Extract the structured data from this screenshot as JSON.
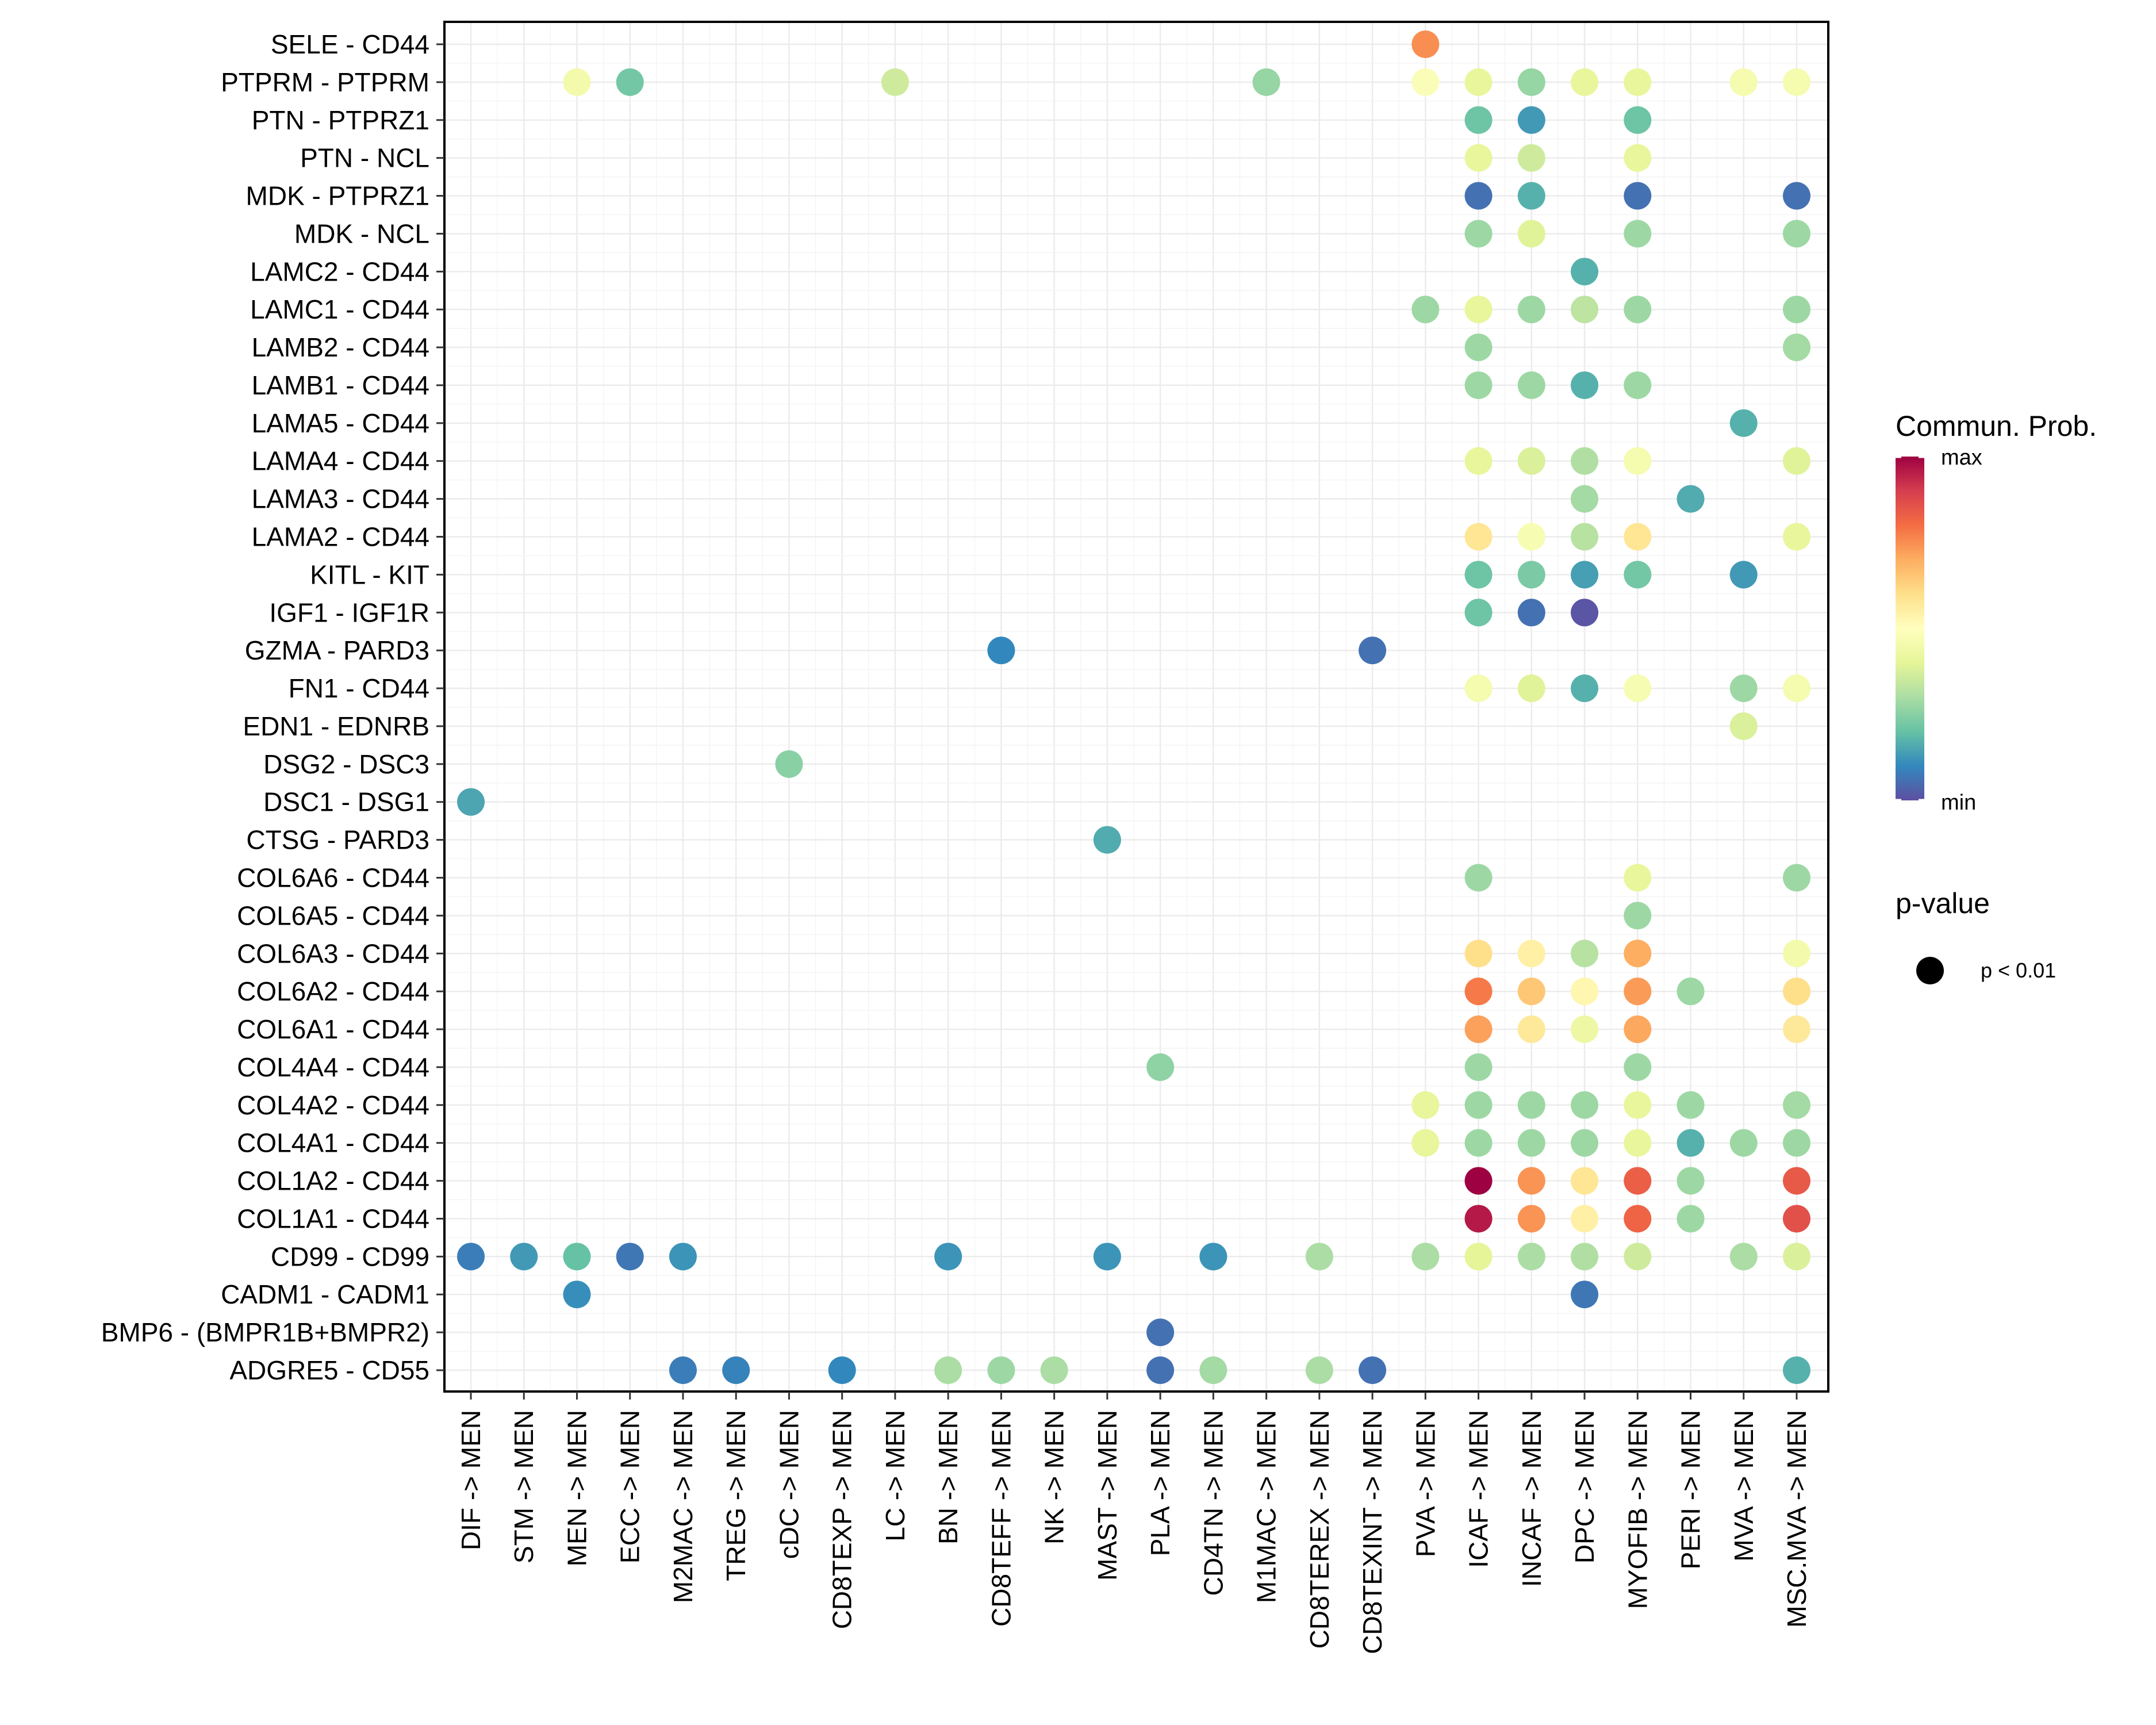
{
  "chart_data": {
    "type": "scatter",
    "subtype": "dot-plot",
    "title": "",
    "xlabel": "",
    "ylabel": "",
    "grid": true,
    "x_categories": [
      "DIF -> MEN",
      "STM -> MEN",
      "MEN -> MEN",
      "ECC -> MEN",
      "M2MAC -> MEN",
      "TREG -> MEN",
      "cDC -> MEN",
      "CD8TEXP -> MEN",
      "LC -> MEN",
      "BN -> MEN",
      "CD8TEFF -> MEN",
      "NK -> MEN",
      "MAST -> MEN",
      "PLA -> MEN",
      "CD4TN -> MEN",
      "M1MAC -> MEN",
      "CD8TEREX -> MEN",
      "CD8TEXINT -> MEN",
      "PVA -> MEN",
      "ICAF -> MEN",
      "INCAF -> MEN",
      "DPC -> MEN",
      "MYOFIB -> MEN",
      "PERI -> MEN",
      "MVA -> MEN",
      "MSC.MVA -> MEN"
    ],
    "y_categories": [
      "SELE - CD44",
      "PTPRM - PTPRM",
      "PTN - PTPRZ1",
      "PTN - NCL",
      "MDK - PTPRZ1",
      "MDK - NCL",
      "LAMC2 - CD44",
      "LAMC1 - CD44",
      "LAMB2 - CD44",
      "LAMB1 - CD44",
      "LAMA5 - CD44",
      "LAMA4 - CD44",
      "LAMA3 - CD44",
      "LAMA2 - CD44",
      "KITL - KIT",
      "IGF1 - IGF1R",
      "GZMA - PARD3",
      "FN1 - CD44",
      "EDN1 - EDNRB",
      "DSG2 - DSC3",
      "DSC1 - DSG1",
      "CTSG - PARD3",
      "COL6A6 - CD44",
      "COL6A5 - CD44",
      "COL6A3 - CD44",
      "COL6A2 - CD44",
      "COL6A1 - CD44",
      "COL4A4 - CD44",
      "COL4A2 - CD44",
      "COL4A1 - CD44",
      "COL1A2 - CD44",
      "COL1A1 - CD44",
      "CD99 - CD99",
      "CADM1 - CADM1",
      "BMP6 - (BMPR1B+BMPR2)",
      "ADGRE5 - CD55"
    ],
    "value_note": "prob is relative communication probability on colorbar scale (0=min, 1=max), estimated from color",
    "points": [
      {
        "y": "SELE - CD44",
        "x": "PVA -> MEN",
        "prob": 0.75
      },
      {
        "y": "PTPRM - PTPRM",
        "x": "MEN -> MEN",
        "prob": 0.45
      },
      {
        "y": "PTPRM - PTPRM",
        "x": "ECC -> MEN",
        "prob": 0.22
      },
      {
        "y": "PTPRM - PTPRM",
        "x": "LC -> MEN",
        "prob": 0.36
      },
      {
        "y": "PTPRM - PTPRM",
        "x": "M1MAC -> MEN",
        "prob": 0.27
      },
      {
        "y": "PTPRM - PTPRM",
        "x": "PVA -> MEN",
        "prob": 0.48
      },
      {
        "y": "PTPRM - PTPRM",
        "x": "ICAF -> MEN",
        "prob": 0.41
      },
      {
        "y": "PTPRM - PTPRM",
        "x": "INCAF -> MEN",
        "prob": 0.27
      },
      {
        "y": "PTPRM - PTPRM",
        "x": "DPC -> MEN",
        "prob": 0.41
      },
      {
        "y": "PTPRM - PTPRM",
        "x": "MYOFIB -> MEN",
        "prob": 0.41
      },
      {
        "y": "PTPRM - PTPRM",
        "x": "MVA -> MEN",
        "prob": 0.46
      },
      {
        "y": "PTPRM - PTPRM",
        "x": "MSC.MVA -> MEN",
        "prob": 0.46
      },
      {
        "y": "PTN - PTPRZ1",
        "x": "ICAF -> MEN",
        "prob": 0.21
      },
      {
        "y": "PTN - PTPRZ1",
        "x": "INCAF -> MEN",
        "prob": 0.13
      },
      {
        "y": "PTN - PTPRZ1",
        "x": "MYOFIB -> MEN",
        "prob": 0.21
      },
      {
        "y": "PTN - NCL",
        "x": "ICAF -> MEN",
        "prob": 0.41
      },
      {
        "y": "PTN - NCL",
        "x": "INCAF -> MEN",
        "prob": 0.36
      },
      {
        "y": "PTN - NCL",
        "x": "MYOFIB -> MEN",
        "prob": 0.41
      },
      {
        "y": "MDK - PTPRZ1",
        "x": "ICAF -> MEN",
        "prob": 0.06
      },
      {
        "y": "MDK - PTPRZ1",
        "x": "INCAF -> MEN",
        "prob": 0.17
      },
      {
        "y": "MDK - PTPRZ1",
        "x": "MYOFIB -> MEN",
        "prob": 0.06
      },
      {
        "y": "MDK - PTPRZ1",
        "x": "MSC.MVA -> MEN",
        "prob": 0.06
      },
      {
        "y": "MDK - NCL",
        "x": "ICAF -> MEN",
        "prob": 0.28
      },
      {
        "y": "MDK - NCL",
        "x": "INCAF -> MEN",
        "prob": 0.39
      },
      {
        "y": "MDK - NCL",
        "x": "MYOFIB -> MEN",
        "prob": 0.28
      },
      {
        "y": "MDK - NCL",
        "x": "MSC.MVA -> MEN",
        "prob": 0.28
      },
      {
        "y": "LAMC2 - CD44",
        "x": "DPC -> MEN",
        "prob": 0.17
      },
      {
        "y": "LAMC1 - CD44",
        "x": "PVA -> MEN",
        "prob": 0.28
      },
      {
        "y": "LAMC1 - CD44",
        "x": "ICAF -> MEN",
        "prob": 0.41
      },
      {
        "y": "LAMC1 - CD44",
        "x": "INCAF -> MEN",
        "prob": 0.28
      },
      {
        "y": "LAMC1 - CD44",
        "x": "DPC -> MEN",
        "prob": 0.33
      },
      {
        "y": "LAMC1 - CD44",
        "x": "MYOFIB -> MEN",
        "prob": 0.28
      },
      {
        "y": "LAMC1 - CD44",
        "x": "MSC.MVA -> MEN",
        "prob": 0.28
      },
      {
        "y": "LAMB2 - CD44",
        "x": "ICAF -> MEN",
        "prob": 0.28
      },
      {
        "y": "LAMB2 - CD44",
        "x": "MSC.MVA -> MEN",
        "prob": 0.29
      },
      {
        "y": "LAMB1 - CD44",
        "x": "ICAF -> MEN",
        "prob": 0.28
      },
      {
        "y": "LAMB1 - CD44",
        "x": "INCAF -> MEN",
        "prob": 0.28
      },
      {
        "y": "LAMB1 - CD44",
        "x": "DPC -> MEN",
        "prob": 0.17
      },
      {
        "y": "LAMB1 - CD44",
        "x": "MYOFIB -> MEN",
        "prob": 0.28
      },
      {
        "y": "LAMA5 - CD44",
        "x": "MVA -> MEN",
        "prob": 0.17
      },
      {
        "y": "LAMA4 - CD44",
        "x": "ICAF -> MEN",
        "prob": 0.41
      },
      {
        "y": "LAMA4 - CD44",
        "x": "INCAF -> MEN",
        "prob": 0.38
      },
      {
        "y": "LAMA4 - CD44",
        "x": "DPC -> MEN",
        "prob": 0.31
      },
      {
        "y": "LAMA4 - CD44",
        "x": "MYOFIB -> MEN",
        "prob": 0.46
      },
      {
        "y": "LAMA4 - CD44",
        "x": "MSC.MVA -> MEN",
        "prob": 0.39
      },
      {
        "y": "LAMA3 - CD44",
        "x": "DPC -> MEN",
        "prob": 0.29
      },
      {
        "y": "LAMA3 - CD44",
        "x": "PERI -> MEN",
        "prob": 0.16
      },
      {
        "y": "LAMA2 - CD44",
        "x": "ICAF -> MEN",
        "prob": 0.58
      },
      {
        "y": "LAMA2 - CD44",
        "x": "INCAF -> MEN",
        "prob": 0.47
      },
      {
        "y": "LAMA2 - CD44",
        "x": "DPC -> MEN",
        "prob": 0.32
      },
      {
        "y": "LAMA2 - CD44",
        "x": "MYOFIB -> MEN",
        "prob": 0.58
      },
      {
        "y": "LAMA2 - CD44",
        "x": "MSC.MVA -> MEN",
        "prob": 0.41
      },
      {
        "y": "KITL - KIT",
        "x": "ICAF -> MEN",
        "prob": 0.21
      },
      {
        "y": "KITL - KIT",
        "x": "INCAF -> MEN",
        "prob": 0.23
      },
      {
        "y": "KITL - KIT",
        "x": "DPC -> MEN",
        "prob": 0.14
      },
      {
        "y": "KITL - KIT",
        "x": "MYOFIB -> MEN",
        "prob": 0.22
      },
      {
        "y": "KITL - KIT",
        "x": "MVA -> MEN",
        "prob": 0.13
      },
      {
        "y": "IGF1 - IGF1R",
        "x": "ICAF -> MEN",
        "prob": 0.21
      },
      {
        "y": "IGF1 - IGF1R",
        "x": "INCAF -> MEN",
        "prob": 0.06
      },
      {
        "y": "IGF1 - IGF1R",
        "x": "DPC -> MEN",
        "prob": 0.01
      },
      {
        "y": "GZMA - PARD3",
        "x": "CD8TEFF -> MEN",
        "prob": 0.1
      },
      {
        "y": "GZMA - PARD3",
        "x": "CD8TEXINT -> MEN",
        "prob": 0.06
      },
      {
        "y": "FN1 - CD44",
        "x": "ICAF -> MEN",
        "prob": 0.46
      },
      {
        "y": "FN1 - CD44",
        "x": "INCAF -> MEN",
        "prob": 0.39
      },
      {
        "y": "FN1 - CD44",
        "x": "DPC -> MEN",
        "prob": 0.17
      },
      {
        "y": "FN1 - CD44",
        "x": "MYOFIB -> MEN",
        "prob": 0.47
      },
      {
        "y": "FN1 - CD44",
        "x": "MVA -> MEN",
        "prob": 0.28
      },
      {
        "y": "FN1 - CD44",
        "x": "MSC.MVA -> MEN",
        "prob": 0.46
      },
      {
        "y": "EDN1 - EDNRB",
        "x": "MVA -> MEN",
        "prob": 0.38
      },
      {
        "y": "DSG2 - DSC3",
        "x": "cDC -> MEN",
        "prob": 0.25
      },
      {
        "y": "DSC1 - DSG1",
        "x": "DIF -> MEN",
        "prob": 0.15
      },
      {
        "y": "CTSG - PARD3",
        "x": "MAST -> MEN",
        "prob": 0.16
      },
      {
        "y": "COL6A6 - CD44",
        "x": "ICAF -> MEN",
        "prob": 0.28
      },
      {
        "y": "COL6A6 - CD44",
        "x": "MYOFIB -> MEN",
        "prob": 0.41
      },
      {
        "y": "COL6A6 - CD44",
        "x": "MSC.MVA -> MEN",
        "prob": 0.28
      },
      {
        "y": "COL6A5 - CD44",
        "x": "MYOFIB -> MEN",
        "prob": 0.28
      },
      {
        "y": "COL6A3 - CD44",
        "x": "ICAF -> MEN",
        "prob": 0.6
      },
      {
        "y": "COL6A3 - CD44",
        "x": "INCAF -> MEN",
        "prob": 0.55
      },
      {
        "y": "COL6A3 - CD44",
        "x": "DPC -> MEN",
        "prob": 0.32
      },
      {
        "y": "COL6A3 - CD44",
        "x": "MYOFIB -> MEN",
        "prob": 0.7
      },
      {
        "y": "COL6A3 - CD44",
        "x": "MSC.MVA -> MEN",
        "prob": 0.45
      },
      {
        "y": "COL6A2 - CD44",
        "x": "ICAF -> MEN",
        "prob": 0.78
      },
      {
        "y": "COL6A2 - CD44",
        "x": "INCAF -> MEN",
        "prob": 0.65
      },
      {
        "y": "COL6A2 - CD44",
        "x": "DPC -> MEN",
        "prob": 0.53
      },
      {
        "y": "COL6A2 - CD44",
        "x": "MYOFIB -> MEN",
        "prob": 0.73
      },
      {
        "y": "COL6A2 - CD44",
        "x": "PERI -> MEN",
        "prob": 0.28
      },
      {
        "y": "COL6A2 - CD44",
        "x": "MSC.MVA -> MEN",
        "prob": 0.6
      },
      {
        "y": "COL6A1 - CD44",
        "x": "ICAF -> MEN",
        "prob": 0.72
      },
      {
        "y": "COL6A1 - CD44",
        "x": "INCAF -> MEN",
        "prob": 0.57
      },
      {
        "y": "COL6A1 - CD44",
        "x": "DPC -> MEN",
        "prob": 0.43
      },
      {
        "y": "COL6A1 - CD44",
        "x": "MYOFIB -> MEN",
        "prob": 0.71
      },
      {
        "y": "COL6A1 - CD44",
        "x": "MSC.MVA -> MEN",
        "prob": 0.57
      },
      {
        "y": "COL4A4 - CD44",
        "x": "PLA -> MEN",
        "prob": 0.26
      },
      {
        "y": "COL4A4 - CD44",
        "x": "ICAF -> MEN",
        "prob": 0.28
      },
      {
        "y": "COL4A4 - CD44",
        "x": "MYOFIB -> MEN",
        "prob": 0.28
      },
      {
        "y": "COL4A2 - CD44",
        "x": "PVA -> MEN",
        "prob": 0.41
      },
      {
        "y": "COL4A2 - CD44",
        "x": "ICAF -> MEN",
        "prob": 0.28
      },
      {
        "y": "COL4A2 - CD44",
        "x": "INCAF -> MEN",
        "prob": 0.28
      },
      {
        "y": "COL4A2 - CD44",
        "x": "DPC -> MEN",
        "prob": 0.28
      },
      {
        "y": "COL4A2 - CD44",
        "x": "MYOFIB -> MEN",
        "prob": 0.41
      },
      {
        "y": "COL4A2 - CD44",
        "x": "PERI -> MEN",
        "prob": 0.28
      },
      {
        "y": "COL4A2 - CD44",
        "x": "MSC.MVA -> MEN",
        "prob": 0.29
      },
      {
        "y": "COL4A1 - CD44",
        "x": "PVA -> MEN",
        "prob": 0.41
      },
      {
        "y": "COL4A1 - CD44",
        "x": "ICAF -> MEN",
        "prob": 0.28
      },
      {
        "y": "COL4A1 - CD44",
        "x": "INCAF -> MEN",
        "prob": 0.28
      },
      {
        "y": "COL4A1 - CD44",
        "x": "DPC -> MEN",
        "prob": 0.28
      },
      {
        "y": "COL4A1 - CD44",
        "x": "MYOFIB -> MEN",
        "prob": 0.41
      },
      {
        "y": "COL4A1 - CD44",
        "x": "PERI -> MEN",
        "prob": 0.17
      },
      {
        "y": "COL4A1 - CD44",
        "x": "MVA -> MEN",
        "prob": 0.28
      },
      {
        "y": "COL4A1 - CD44",
        "x": "MSC.MVA -> MEN",
        "prob": 0.28
      },
      {
        "y": "COL1A2 - CD44",
        "x": "ICAF -> MEN",
        "prob": 1.0
      },
      {
        "y": "COL1A2 - CD44",
        "x": "INCAF -> MEN",
        "prob": 0.74
      },
      {
        "y": "COL1A2 - CD44",
        "x": "DPC -> MEN",
        "prob": 0.58
      },
      {
        "y": "COL1A2 - CD44",
        "x": "MYOFIB -> MEN",
        "prob": 0.83
      },
      {
        "y": "COL1A2 - CD44",
        "x": "PERI -> MEN",
        "prob": 0.28
      },
      {
        "y": "COL1A2 - CD44",
        "x": "MSC.MVA -> MEN",
        "prob": 0.84
      },
      {
        "y": "COL1A1 - CD44",
        "x": "ICAF -> MEN",
        "prob": 0.96
      },
      {
        "y": "COL1A1 - CD44",
        "x": "INCAF -> MEN",
        "prob": 0.74
      },
      {
        "y": "COL1A1 - CD44",
        "x": "DPC -> MEN",
        "prob": 0.55
      },
      {
        "y": "COL1A1 - CD44",
        "x": "MYOFIB -> MEN",
        "prob": 0.82
      },
      {
        "y": "COL1A1 - CD44",
        "x": "PERI -> MEN",
        "prob": 0.28
      },
      {
        "y": "COL1A1 - CD44",
        "x": "MSC.MVA -> MEN",
        "prob": 0.86
      },
      {
        "y": "CD99 - CD99",
        "x": "DIF -> MEN",
        "prob": 0.08
      },
      {
        "y": "CD99 - CD99",
        "x": "STM -> MEN",
        "prob": 0.13
      },
      {
        "y": "CD99 - CD99",
        "x": "MEN -> MEN",
        "prob": 0.2
      },
      {
        "y": "CD99 - CD99",
        "x": "ECC -> MEN",
        "prob": 0.07
      },
      {
        "y": "CD99 - CD99",
        "x": "M2MAC -> MEN",
        "prob": 0.12
      },
      {
        "y": "CD99 - CD99",
        "x": "BN -> MEN",
        "prob": 0.12
      },
      {
        "y": "CD99 - CD99",
        "x": "MAST -> MEN",
        "prob": 0.12
      },
      {
        "y": "CD99 - CD99",
        "x": "CD4TN -> MEN",
        "prob": 0.12
      },
      {
        "y": "CD99 - CD99",
        "x": "CD8TEREX -> MEN",
        "prob": 0.3
      },
      {
        "y": "CD99 - CD99",
        "x": "PVA -> MEN",
        "prob": 0.3
      },
      {
        "y": "CD99 - CD99",
        "x": "ICAF -> MEN",
        "prob": 0.4
      },
      {
        "y": "CD99 - CD99",
        "x": "INCAF -> MEN",
        "prob": 0.3
      },
      {
        "y": "CD99 - CD99",
        "x": "DPC -> MEN",
        "prob": 0.31
      },
      {
        "y": "CD99 - CD99",
        "x": "MYOFIB -> MEN",
        "prob": 0.36
      },
      {
        "y": "CD99 - CD99",
        "x": "MVA -> MEN",
        "prob": 0.3
      },
      {
        "y": "CD99 - CD99",
        "x": "MSC.MVA -> MEN",
        "prob": 0.38
      },
      {
        "y": "CADM1 - CADM1",
        "x": "MEN -> MEN",
        "prob": 0.11
      },
      {
        "y": "CADM1 - CADM1",
        "x": "DPC -> MEN",
        "prob": 0.07
      },
      {
        "y": "BMP6 - (BMPR1B+BMPR2)",
        "x": "PLA -> MEN",
        "prob": 0.06
      },
      {
        "y": "ADGRE5 - CD55",
        "x": "M2MAC -> MEN",
        "prob": 0.08
      },
      {
        "y": "ADGRE5 - CD55",
        "x": "TREG -> MEN",
        "prob": 0.09
      },
      {
        "y": "ADGRE5 - CD55",
        "x": "CD8TEXP -> MEN",
        "prob": 0.1
      },
      {
        "y": "ADGRE5 - CD55",
        "x": "BN -> MEN",
        "prob": 0.3
      },
      {
        "y": "ADGRE5 - CD55",
        "x": "CD8TEFF -> MEN",
        "prob": 0.28
      },
      {
        "y": "ADGRE5 - CD55",
        "x": "NK -> MEN",
        "prob": 0.3
      },
      {
        "y": "ADGRE5 - CD55",
        "x": "PLA -> MEN",
        "prob": 0.06
      },
      {
        "y": "ADGRE5 - CD55",
        "x": "CD4TN -> MEN",
        "prob": 0.29
      },
      {
        "y": "ADGRE5 - CD55",
        "x": "CD8TEREX -> MEN",
        "prob": 0.3
      },
      {
        "y": "ADGRE5 - CD55",
        "x": "CD8TEXINT -> MEN",
        "prob": 0.06
      },
      {
        "y": "ADGRE5 - CD55",
        "x": "MSC.MVA -> MEN",
        "prob": 0.17
      }
    ],
    "color_legend": {
      "title": "Commun. Prob.",
      "max_label": "max",
      "min_label": "min",
      "palette": [
        "#5E4FA2",
        "#3288BD",
        "#66C2A5",
        "#ABDDA4",
        "#E6F598",
        "#FFFFBF",
        "#FEE08B",
        "#FDAE61",
        "#F46D43",
        "#D53E4F",
        "#9E0142"
      ],
      "position": "right"
    },
    "size_legend": {
      "title": "p-value",
      "items": [
        {
          "label": "p < 0.01"
        }
      ],
      "position": "right"
    },
    "grid_color": "#EBEBEB",
    "panel_border_color": "#000000"
  }
}
